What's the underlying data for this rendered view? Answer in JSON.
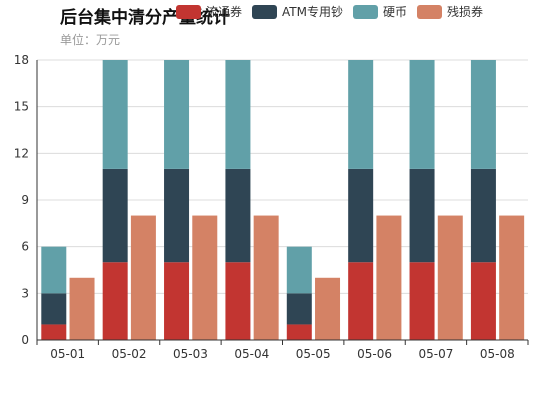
{
  "chart_data": {
    "type": "bar",
    "title": "后台集中清分产量统计",
    "subtitle": "单位：万元",
    "categories": [
      "05-01",
      "05-02",
      "05-03",
      "05-04",
      "05-05",
      "05-06",
      "05-07",
      "05-08"
    ],
    "ylim": [
      0,
      18
    ],
    "yticks": [
      0,
      3,
      6,
      9,
      12,
      15,
      18
    ],
    "grid": true,
    "legend_position": "top",
    "stacked_series": [
      {
        "name": "流通券",
        "color": "#c23531",
        "values": [
          1,
          5,
          5,
          5,
          1,
          5,
          5,
          5
        ]
      },
      {
        "name": "ATM专用钞",
        "color": "#2f4554",
        "values": [
          2,
          6,
          6,
          6,
          2,
          6,
          6,
          6
        ]
      },
      {
        "name": "硬币",
        "color": "#61a0a8",
        "values": [
          3,
          7,
          7,
          7,
          3,
          7,
          7,
          7
        ]
      }
    ],
    "side_series": {
      "name": "残损券",
      "color": "#d48265",
      "values": [
        4,
        8,
        8,
        8,
        4,
        8,
        8,
        8
      ]
    }
  }
}
